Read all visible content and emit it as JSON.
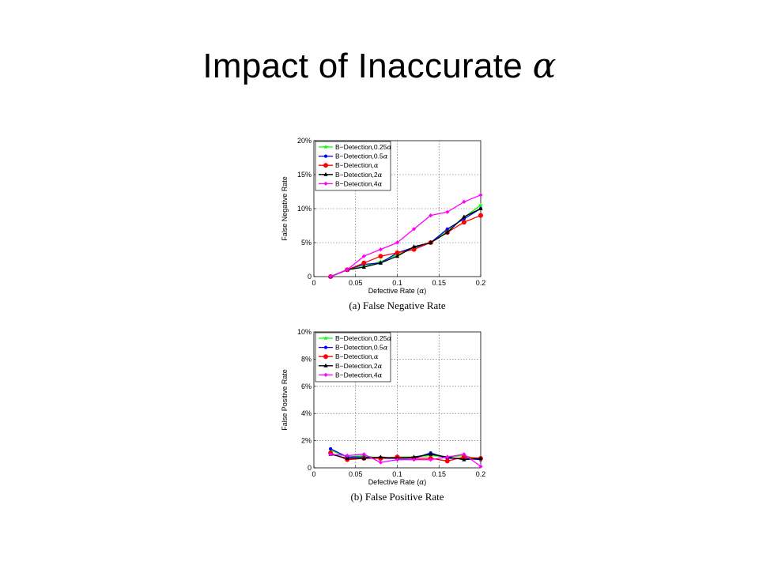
{
  "slide": {
    "title": "Impact of Inaccurate ",
    "title_symbol": "α"
  },
  "chart_data": [
    {
      "type": "line",
      "caption": "(a) False Negative Rate",
      "xlabel": "Defective Rate (α)",
      "ylabel": "False Negative Rate",
      "xlim": [
        0,
        0.2
      ],
      "ylim": [
        0,
        20
      ],
      "x_ticks": [
        "0",
        "0.05",
        "0.1",
        "0.15",
        "0.2"
      ],
      "y_ticks": [
        "0",
        "5%",
        "10%",
        "15%",
        "20%"
      ],
      "grid": true,
      "legend_position": "top-left",
      "x": [
        0.02,
        0.04,
        0.06,
        0.08,
        0.1,
        0.12,
        0.14,
        0.16,
        0.18,
        0.2
      ],
      "series": [
        {
          "name": "B−Detection,0.25α",
          "color": "#00ff00",
          "marker": "star",
          "values": [
            0,
            1,
            1.5,
            2.2,
            3.2,
            4.2,
            5.0,
            6.8,
            8.7,
            10.5
          ]
        },
        {
          "name": "B−Detection,0.5α",
          "color": "#0000ff",
          "marker": "dot",
          "values": [
            0,
            1,
            1.8,
            2.0,
            3.5,
            4.3,
            5.0,
            7.0,
            8.5,
            10.0
          ]
        },
        {
          "name": "B−Detection,α",
          "color": "#ff0000",
          "marker": "circle",
          "values": [
            0,
            1,
            2.0,
            3.0,
            3.5,
            4.0,
            5.0,
            6.5,
            8.0,
            9.0
          ]
        },
        {
          "name": "B−Detection,2α",
          "color": "#000000",
          "marker": "triangle",
          "values": [
            0,
            1,
            1.4,
            2.0,
            3.0,
            4.4,
            5.0,
            6.5,
            8.8,
            10.0
          ]
        },
        {
          "name": "B−Detection,4α",
          "color": "#ff00ff",
          "marker": "diamond",
          "values": [
            0,
            1,
            3.0,
            4.0,
            5.0,
            7.0,
            9.0,
            9.5,
            11.0,
            12.0
          ]
        }
      ]
    },
    {
      "type": "line",
      "caption": "(b) False Positive Rate",
      "xlabel": "Defective Rate (α)",
      "ylabel": "False Positive Rate",
      "xlim": [
        0,
        0.2
      ],
      "ylim": [
        0,
        10
      ],
      "x_ticks": [
        "0",
        "0.05",
        "0.1",
        "0.15",
        "0.2"
      ],
      "y_ticks": [
        "0",
        "2%",
        "4%",
        "6%",
        "8%",
        "10%"
      ],
      "grid": true,
      "legend_position": "top-left",
      "x": [
        0.02,
        0.04,
        0.06,
        0.08,
        0.1,
        0.12,
        0.14,
        0.16,
        0.18,
        0.2
      ],
      "series": [
        {
          "name": "B−Detection,0.25α",
          "color": "#00ff00",
          "marker": "star",
          "values": [
            1.3,
            0.8,
            0.9,
            0.7,
            0.8,
            0.8,
            0.9,
            0.8,
            0.9,
            0.6
          ]
        },
        {
          "name": "B−Detection,0.5α",
          "color": "#0000ff",
          "marker": "dot",
          "values": [
            1.4,
            0.8,
            0.8,
            0.7,
            0.7,
            0.7,
            1.1,
            0.7,
            0.7,
            0.6
          ]
        },
        {
          "name": "B−Detection,α",
          "color": "#ff0000",
          "marker": "circle",
          "values": [
            1.1,
            0.6,
            0.7,
            0.7,
            0.8,
            0.7,
            0.7,
            0.5,
            0.8,
            0.7
          ]
        },
        {
          "name": "B−Detection,2α",
          "color": "#000000",
          "marker": "triangle",
          "values": [
            1.0,
            0.7,
            0.7,
            0.8,
            0.7,
            0.8,
            1.0,
            0.8,
            0.6,
            0.7
          ]
        },
        {
          "name": "B−Detection,4α",
          "color": "#ff00ff",
          "marker": "diamond",
          "values": [
            1.0,
            0.9,
            1.0,
            0.4,
            0.6,
            0.6,
            0.6,
            0.8,
            1.0,
            0.1
          ]
        }
      ]
    }
  ]
}
